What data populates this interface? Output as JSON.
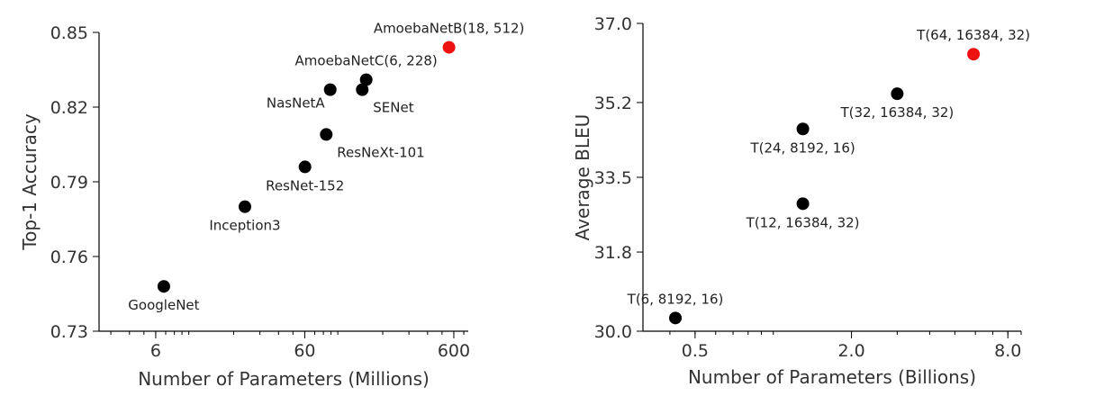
{
  "chart_data": [
    {
      "type": "scatter",
      "xlabel": "Number of Parameters (Millions)",
      "ylabel": "Top-1 Accuracy",
      "x_scale": "log",
      "xlim": [
        2.5,
        750
      ],
      "ylim": [
        0.73,
        0.85
      ],
      "xticks": [
        6,
        60,
        600
      ],
      "yticks": [
        0.73,
        0.76,
        0.79,
        0.82,
        0.85
      ],
      "ytick_labels": [
        "0.73",
        "0.76",
        "0.79",
        "0.82",
        "0.85"
      ],
      "points": [
        {
          "label": "GoogleNet",
          "x": 6.8,
          "y": 0.748,
          "highlight": false,
          "label_pos": "below"
        },
        {
          "label": "Inception3",
          "x": 23.8,
          "y": 0.78,
          "highlight": false,
          "label_pos": "below"
        },
        {
          "label": "ResNet-152",
          "x": 60.2,
          "y": 0.796,
          "highlight": false,
          "label_pos": "below"
        },
        {
          "label": "ResNeXt-101",
          "x": 83.6,
          "y": 0.809,
          "highlight": false,
          "label_pos": "right-below"
        },
        {
          "label": "NasNetA",
          "x": 88.9,
          "y": 0.827,
          "highlight": false,
          "label_pos": "left-below"
        },
        {
          "label": "AmoebaNetC(6, 228)",
          "x": 155,
          "y": 0.831,
          "highlight": false,
          "label_pos": "above"
        },
        {
          "label": "SENet",
          "x": 145.8,
          "y": 0.827,
          "highlight": false,
          "label_pos": "right-below"
        },
        {
          "label": "AmoebaNetB(18, 512)",
          "x": 557,
          "y": 0.844,
          "highlight": true,
          "label_pos": "above"
        }
      ],
      "point_color": "#000000",
      "highlight_color": "#ee1111"
    },
    {
      "type": "scatter",
      "xlabel": "Number of Parameters (Billions)",
      "ylabel": "Average BLEU",
      "x_scale": "log",
      "xlim": [
        0.315,
        9.0
      ],
      "ylim": [
        30.0,
        37.0
      ],
      "xticks": [
        0.5,
        2.0,
        8.0
      ],
      "xtick_labels": [
        "0.5",
        "2.0",
        "8.0"
      ],
      "yticks": [
        30.0,
        31.8,
        33.5,
        35.2,
        37.0
      ],
      "ytick_labels": [
        "30.0",
        "31.8",
        "33.5",
        "35.2",
        "37.0"
      ],
      "points": [
        {
          "label": "T(6, 8192, 16)",
          "x": 0.42,
          "y": 30.3,
          "highlight": false,
          "label_pos": "above"
        },
        {
          "label": "T(12, 16384, 32)",
          "x": 1.3,
          "y": 32.9,
          "highlight": false,
          "label_pos": "below"
        },
        {
          "label": "T(24, 8192, 16)",
          "x": 1.3,
          "y": 34.6,
          "highlight": false,
          "label_pos": "below"
        },
        {
          "label": "T(32, 16384, 32)",
          "x": 3.0,
          "y": 35.4,
          "highlight": false,
          "label_pos": "below"
        },
        {
          "label": "T(64, 16384, 32)",
          "x": 5.9,
          "y": 36.3,
          "highlight": true,
          "label_pos": "above"
        }
      ],
      "point_color": "#000000",
      "highlight_color": "#ee1111"
    }
  ]
}
